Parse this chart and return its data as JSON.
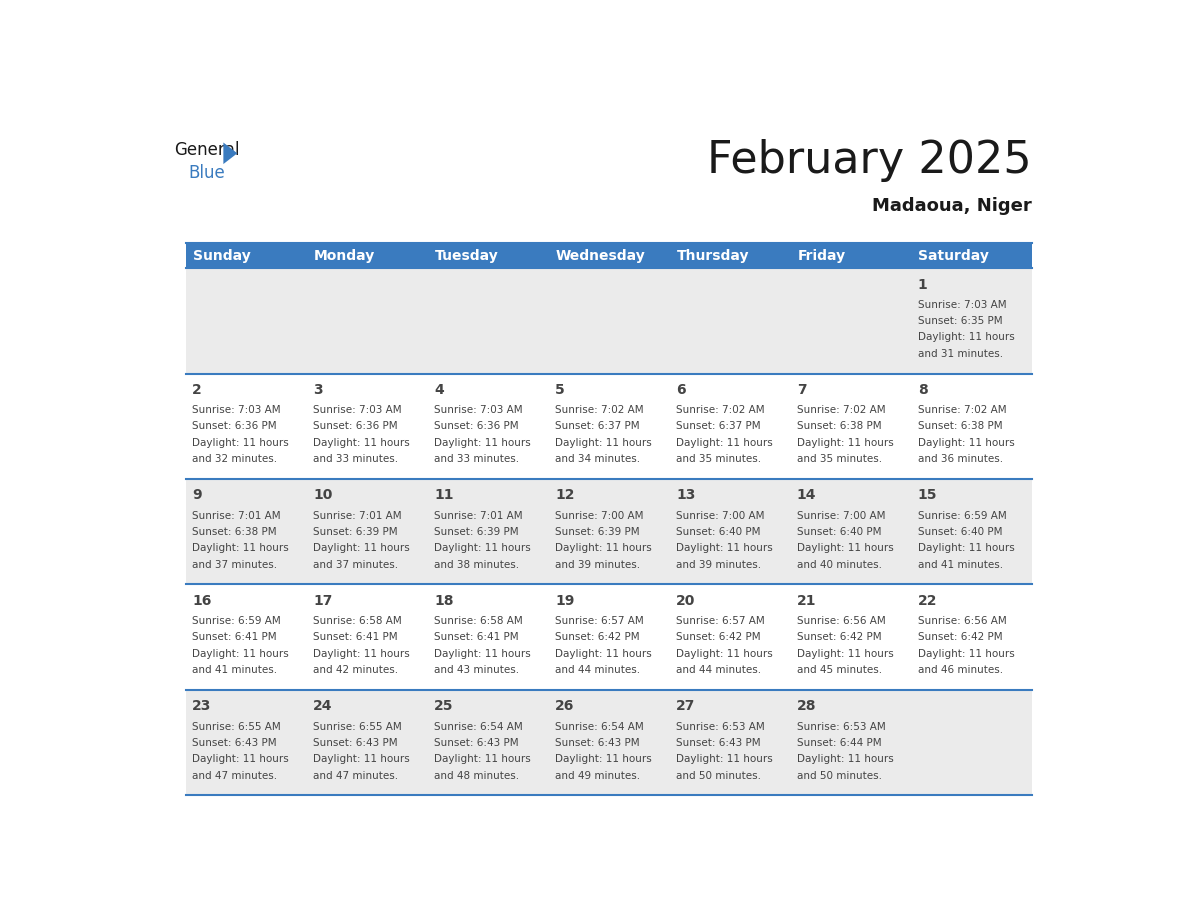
{
  "title": "February 2025",
  "subtitle": "Madaoua, Niger",
  "header_bg": "#3a7bbf",
  "header_text_color": "#ffffff",
  "cell_bg_row0": "#ebebeb",
  "cell_bg_row1": "#ffffff",
  "cell_bg_row2": "#ebebeb",
  "cell_bg_row3": "#ffffff",
  "cell_bg_row4": "#ebebeb",
  "border_color": "#3a7bbf",
  "text_color": "#444444",
  "day_headers": [
    "Sunday",
    "Monday",
    "Tuesday",
    "Wednesday",
    "Thursday",
    "Friday",
    "Saturday"
  ],
  "days": [
    {
      "day": 1,
      "col": 6,
      "row": 0,
      "sunrise": "7:03 AM",
      "sunset": "6:35 PM",
      "daylight": "11 hours\nand 31 minutes."
    },
    {
      "day": 2,
      "col": 0,
      "row": 1,
      "sunrise": "7:03 AM",
      "sunset": "6:36 PM",
      "daylight": "11 hours\nand 32 minutes."
    },
    {
      "day": 3,
      "col": 1,
      "row": 1,
      "sunrise": "7:03 AM",
      "sunset": "6:36 PM",
      "daylight": "11 hours\nand 33 minutes."
    },
    {
      "day": 4,
      "col": 2,
      "row": 1,
      "sunrise": "7:03 AM",
      "sunset": "6:36 PM",
      "daylight": "11 hours\nand 33 minutes."
    },
    {
      "day": 5,
      "col": 3,
      "row": 1,
      "sunrise": "7:02 AM",
      "sunset": "6:37 PM",
      "daylight": "11 hours\nand 34 minutes."
    },
    {
      "day": 6,
      "col": 4,
      "row": 1,
      "sunrise": "7:02 AM",
      "sunset": "6:37 PM",
      "daylight": "11 hours\nand 35 minutes."
    },
    {
      "day": 7,
      "col": 5,
      "row": 1,
      "sunrise": "7:02 AM",
      "sunset": "6:38 PM",
      "daylight": "11 hours\nand 35 minutes."
    },
    {
      "day": 8,
      "col": 6,
      "row": 1,
      "sunrise": "7:02 AM",
      "sunset": "6:38 PM",
      "daylight": "11 hours\nand 36 minutes."
    },
    {
      "day": 9,
      "col": 0,
      "row": 2,
      "sunrise": "7:01 AM",
      "sunset": "6:38 PM",
      "daylight": "11 hours\nand 37 minutes."
    },
    {
      "day": 10,
      "col": 1,
      "row": 2,
      "sunrise": "7:01 AM",
      "sunset": "6:39 PM",
      "daylight": "11 hours\nand 37 minutes."
    },
    {
      "day": 11,
      "col": 2,
      "row": 2,
      "sunrise": "7:01 AM",
      "sunset": "6:39 PM",
      "daylight": "11 hours\nand 38 minutes."
    },
    {
      "day": 12,
      "col": 3,
      "row": 2,
      "sunrise": "7:00 AM",
      "sunset": "6:39 PM",
      "daylight": "11 hours\nand 39 minutes."
    },
    {
      "day": 13,
      "col": 4,
      "row": 2,
      "sunrise": "7:00 AM",
      "sunset": "6:40 PM",
      "daylight": "11 hours\nand 39 minutes."
    },
    {
      "day": 14,
      "col": 5,
      "row": 2,
      "sunrise": "7:00 AM",
      "sunset": "6:40 PM",
      "daylight": "11 hours\nand 40 minutes."
    },
    {
      "day": 15,
      "col": 6,
      "row": 2,
      "sunrise": "6:59 AM",
      "sunset": "6:40 PM",
      "daylight": "11 hours\nand 41 minutes."
    },
    {
      "day": 16,
      "col": 0,
      "row": 3,
      "sunrise": "6:59 AM",
      "sunset": "6:41 PM",
      "daylight": "11 hours\nand 41 minutes."
    },
    {
      "day": 17,
      "col": 1,
      "row": 3,
      "sunrise": "6:58 AM",
      "sunset": "6:41 PM",
      "daylight": "11 hours\nand 42 minutes."
    },
    {
      "day": 18,
      "col": 2,
      "row": 3,
      "sunrise": "6:58 AM",
      "sunset": "6:41 PM",
      "daylight": "11 hours\nand 43 minutes."
    },
    {
      "day": 19,
      "col": 3,
      "row": 3,
      "sunrise": "6:57 AM",
      "sunset": "6:42 PM",
      "daylight": "11 hours\nand 44 minutes."
    },
    {
      "day": 20,
      "col": 4,
      "row": 3,
      "sunrise": "6:57 AM",
      "sunset": "6:42 PM",
      "daylight": "11 hours\nand 44 minutes."
    },
    {
      "day": 21,
      "col": 5,
      "row": 3,
      "sunrise": "6:56 AM",
      "sunset": "6:42 PM",
      "daylight": "11 hours\nand 45 minutes."
    },
    {
      "day": 22,
      "col": 6,
      "row": 3,
      "sunrise": "6:56 AM",
      "sunset": "6:42 PM",
      "daylight": "11 hours\nand 46 minutes."
    },
    {
      "day": 23,
      "col": 0,
      "row": 4,
      "sunrise": "6:55 AM",
      "sunset": "6:43 PM",
      "daylight": "11 hours\nand 47 minutes."
    },
    {
      "day": 24,
      "col": 1,
      "row": 4,
      "sunrise": "6:55 AM",
      "sunset": "6:43 PM",
      "daylight": "11 hours\nand 47 minutes."
    },
    {
      "day": 25,
      "col": 2,
      "row": 4,
      "sunrise": "6:54 AM",
      "sunset": "6:43 PM",
      "daylight": "11 hours\nand 48 minutes."
    },
    {
      "day": 26,
      "col": 3,
      "row": 4,
      "sunrise": "6:54 AM",
      "sunset": "6:43 PM",
      "daylight": "11 hours\nand 49 minutes."
    },
    {
      "day": 27,
      "col": 4,
      "row": 4,
      "sunrise": "6:53 AM",
      "sunset": "6:43 PM",
      "daylight": "11 hours\nand 50 minutes."
    },
    {
      "day": 28,
      "col": 5,
      "row": 4,
      "sunrise": "6:53 AM",
      "sunset": "6:44 PM",
      "daylight": "11 hours\nand 50 minutes."
    }
  ],
  "num_rows": 5,
  "num_cols": 7,
  "logo_general_color": "#1a1a1a",
  "logo_blue_color": "#3a7bbf",
  "logo_triangle_color": "#3a7bbf",
  "title_fontsize": 32,
  "subtitle_fontsize": 13,
  "header_fontsize": 10,
  "day_num_fontsize": 10,
  "info_fontsize": 7.5
}
